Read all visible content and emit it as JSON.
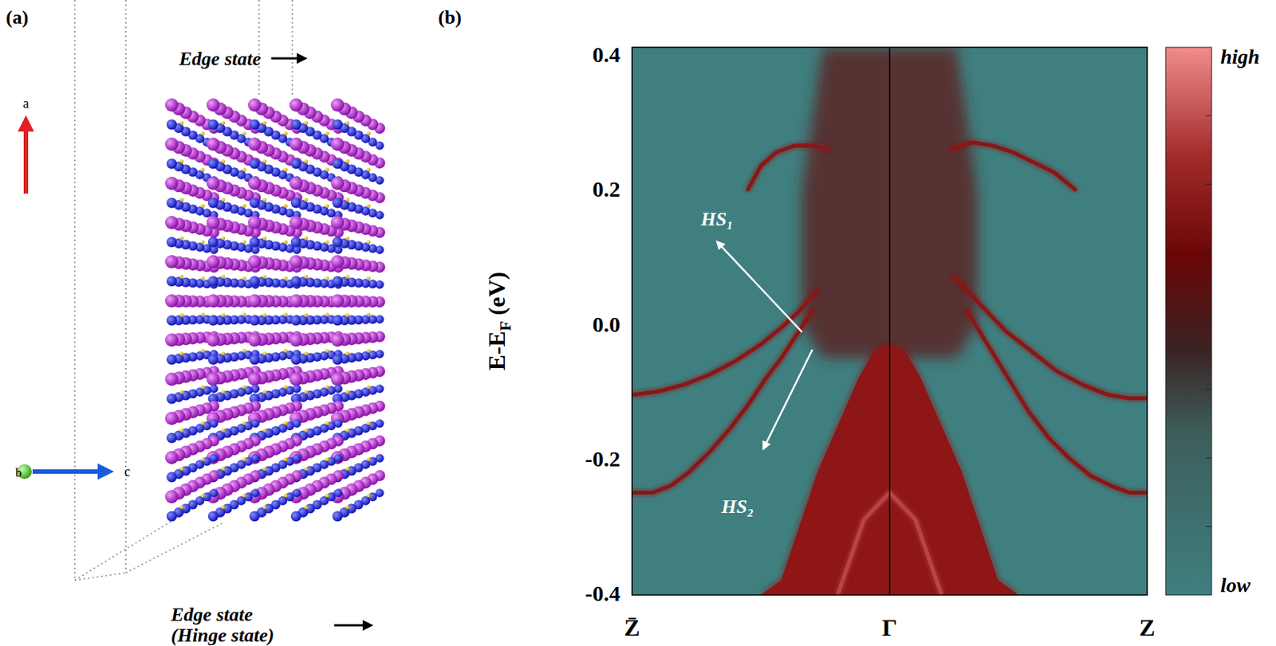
{
  "chart_data": {
    "type": "line",
    "panel_label": "(b)",
    "y_label": "E-EF (eV)",
    "xlim": [
      -1,
      1
    ],
    "xticks": [
      {
        "value": -1,
        "label": "Z̄"
      },
      {
        "value": 0,
        "label": "Γ"
      },
      {
        "value": 1,
        "label": "Z"
      }
    ],
    "ylim": [
      -0.402,
      0.411
    ],
    "yticks": [
      -0.4,
      -0.2,
      {
        "value": 0,
        "label": "0.0"
      },
      0.2,
      0.4
    ],
    "grid": true,
    "colorbar": {
      "high_label": "high",
      "low_label": "low"
    },
    "series": [
      {
        "type": "band",
        "color": "#5a2626",
        "x": [
          -0.34,
          -0.26,
          -0.15,
          0,
          0.15,
          0.26,
          0.34
        ],
        "values": [
          0.2,
          0.411,
          0.411,
          0.411,
          0.411,
          0.411,
          0.2
        ],
        "lower": [
          0.0,
          -0.05,
          -0.05,
          -0.05,
          -0.05,
          -0.05,
          0.0
        ]
      },
      {
        "type": "area",
        "color": "#8e1212",
        "x": [
          -0.5,
          -0.42,
          -0.35,
          -0.28,
          -0.2,
          -0.12,
          -0.06,
          0,
          0.06,
          0.12,
          0.2,
          0.28,
          0.35,
          0.42,
          0.5
        ],
        "values": [
          -0.402,
          -0.38,
          -0.3,
          -0.22,
          -0.15,
          -0.08,
          -0.04,
          -0.03,
          -0.04,
          -0.08,
          -0.15,
          -0.22,
          -0.3,
          -0.38,
          -0.402
        ]
      },
      {
        "type": "line",
        "color": "#b84444",
        "x": [
          -0.2,
          -0.1,
          0,
          0.1,
          0.2
        ],
        "values": [
          -0.4,
          -0.29,
          -0.25,
          -0.29,
          -0.4
        ]
      },
      {
        "type": "line",
        "color": "#8a1414",
        "x": [
          -1,
          -0.9,
          -0.8,
          -0.7,
          -0.6,
          -0.5,
          -0.42,
          -0.35,
          -0.28
        ],
        "values": [
          -0.105,
          -0.1,
          -0.09,
          -0.075,
          -0.055,
          -0.03,
          -0.005,
          0.02,
          0.05
        ]
      },
      {
        "type": "line",
        "color": "#8a1414",
        "x": [
          -1,
          -0.92,
          -0.85,
          -0.78,
          -0.7,
          -0.62,
          -0.55,
          -0.48,
          -0.42,
          -0.36,
          -0.3
        ],
        "values": [
          -0.25,
          -0.25,
          -0.24,
          -0.22,
          -0.19,
          -0.155,
          -0.12,
          -0.08,
          -0.05,
          -0.015,
          0.02
        ]
      },
      {
        "type": "line",
        "color": "#8a1414",
        "x": [
          0.25,
          0.35,
          0.45,
          0.55,
          0.65,
          0.75,
          0.85,
          0.93,
          1
        ],
        "values": [
          0.07,
          0.03,
          -0.01,
          -0.04,
          -0.07,
          -0.09,
          -0.105,
          -0.11,
          -0.11
        ]
      },
      {
        "type": "line",
        "color": "#8a1414",
        "x": [
          0.3,
          0.38,
          0.46,
          0.54,
          0.62,
          0.7,
          0.78,
          0.86,
          0.93,
          1
        ],
        "values": [
          0.02,
          -0.03,
          -0.08,
          -0.13,
          -0.17,
          -0.2,
          -0.225,
          -0.24,
          -0.25,
          -0.25
        ]
      },
      {
        "type": "line",
        "color": "#8a1414",
        "x": [
          -0.55,
          -0.5,
          -0.44,
          -0.37,
          -0.3,
          -0.24
        ],
        "values": [
          0.2,
          0.235,
          0.255,
          0.265,
          0.265,
          0.26
        ]
      },
      {
        "type": "line",
        "color": "#8a1414",
        "x": [
          0.24,
          0.32,
          0.4,
          0.48,
          0.56,
          0.64,
          0.72
        ],
        "values": [
          0.26,
          0.27,
          0.265,
          0.255,
          0.24,
          0.225,
          0.2
        ]
      }
    ],
    "annotations": [
      {
        "text": "HS₁"
      },
      {
        "text": "HS₂"
      }
    ]
  },
  "diagram": {
    "panel_label": "(a)",
    "top_label": "Edge state",
    "bottom_label": [
      "Edge state",
      "(Hinge state)"
    ],
    "axes": [
      "a",
      "b",
      "c"
    ]
  }
}
